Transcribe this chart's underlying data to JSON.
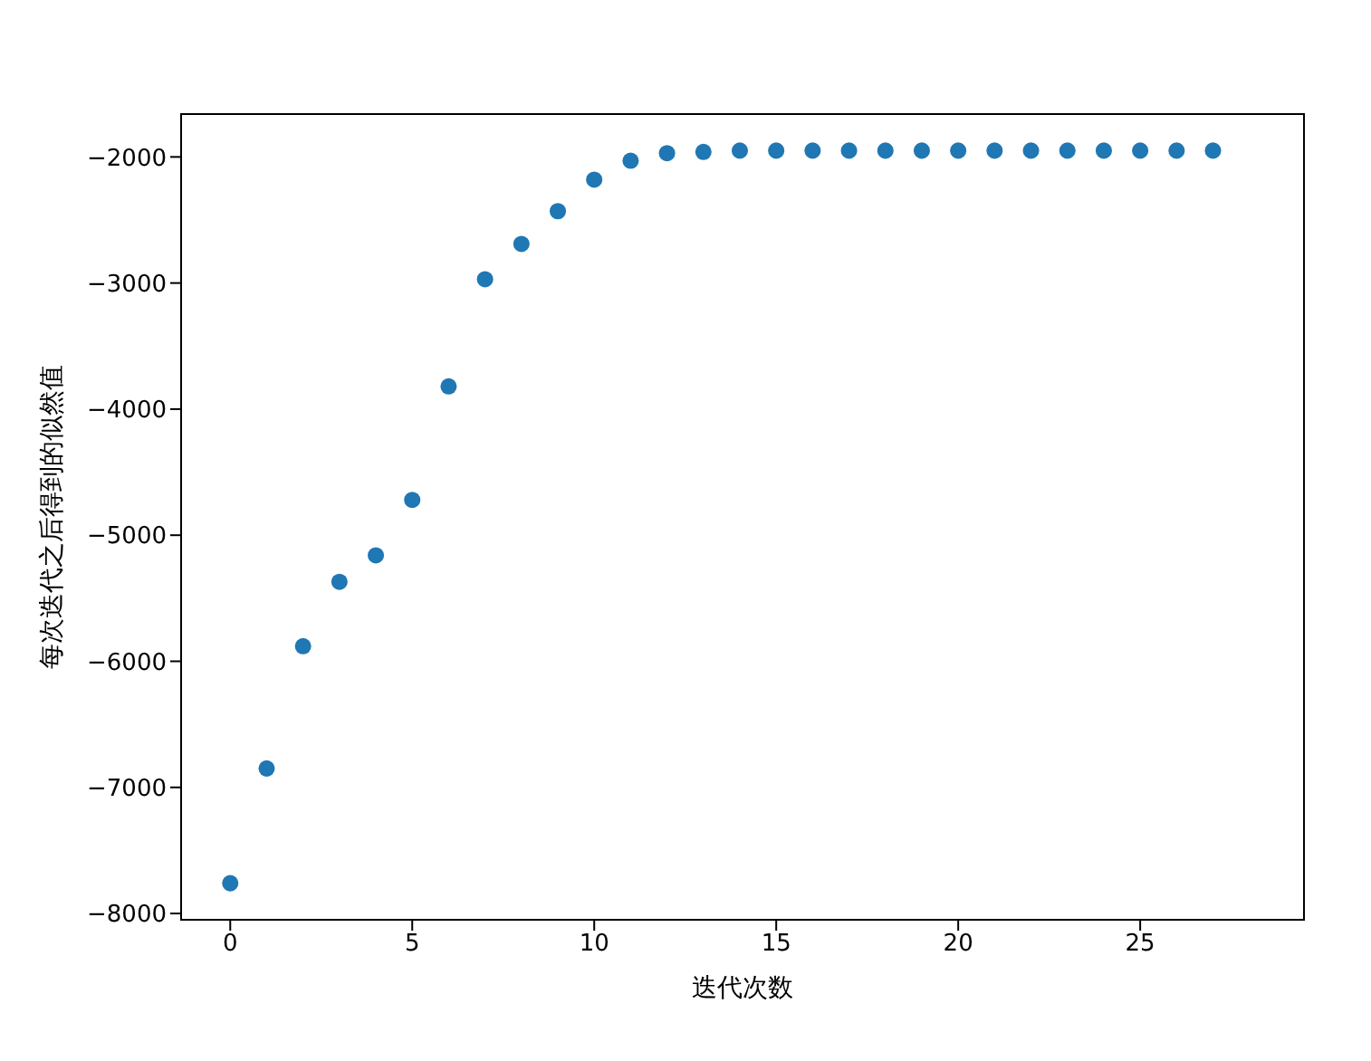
{
  "chart_data": {
    "type": "scatter",
    "xlabel": "迭代次数",
    "ylabel": "每次迭代之后得到的似然值",
    "x": [
      0,
      1,
      2,
      3,
      4,
      5,
      6,
      7,
      8,
      9,
      10,
      11,
      12,
      13,
      14,
      15,
      16,
      17,
      18,
      19,
      20,
      21,
      22,
      23,
      24,
      25,
      26,
      27
    ],
    "series": [
      {
        "color": "#1f77b4",
        "values": [
          -7760,
          -6850,
          -5880,
          -5370,
          -5160,
          -4720,
          -3820,
          -2970,
          -2690,
          -2430,
          -2180,
          -2030,
          -1970,
          -1960,
          -1950,
          -1950,
          -1950,
          -1950,
          -1950,
          -1950,
          -1950,
          -1950,
          -1950,
          -1950,
          -1950,
          -1950,
          -1950,
          -1950
        ]
      }
    ],
    "xlim": [
      -1.35,
      29.5
    ],
    "xticks": [
      0,
      5,
      10,
      15,
      20,
      25
    ],
    "ylim": [
      -8050,
      -1660
    ],
    "yticks": [
      -8000,
      -7000,
      -6000,
      -5000,
      -4000,
      -3000,
      -2000
    ],
    "grid": false
  }
}
